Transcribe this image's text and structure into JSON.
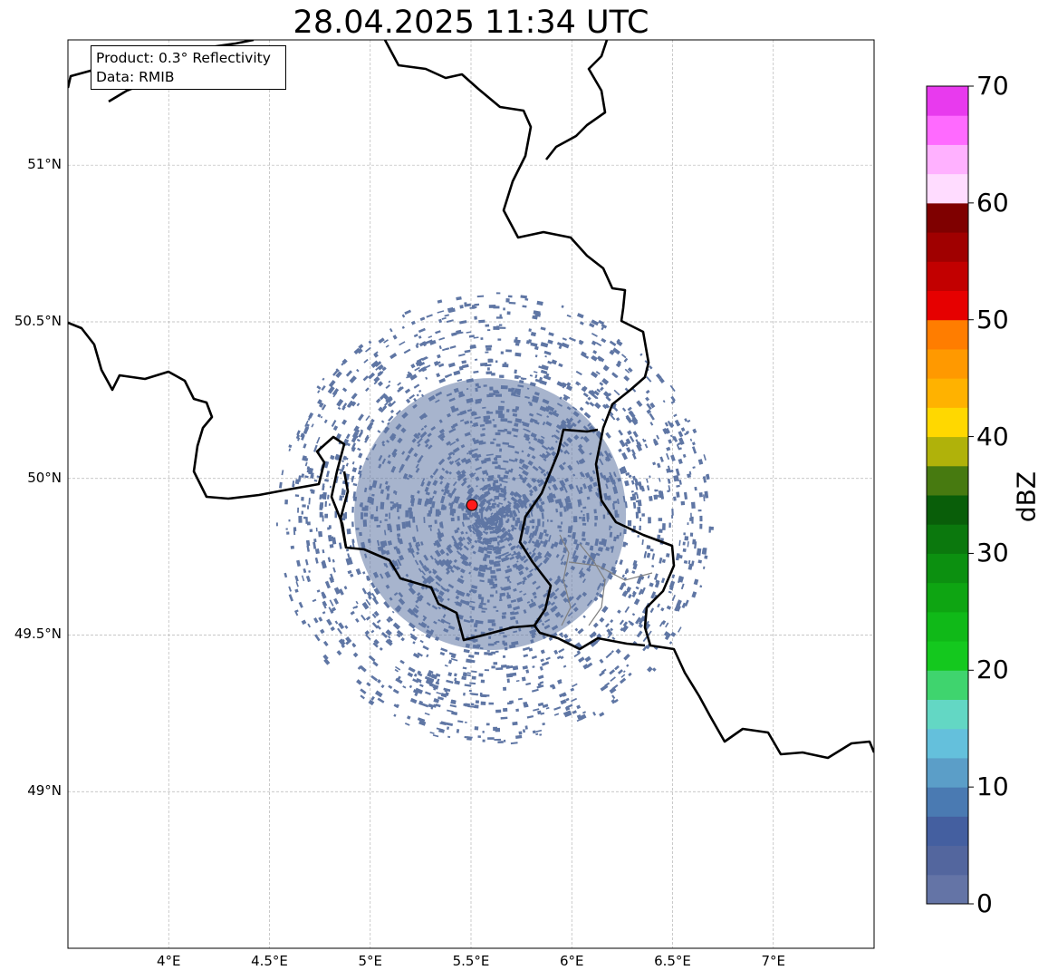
{
  "title": "28.04.2025 11:34 UTC",
  "info_box": {
    "product": "Product: 0.3° Reflectivity",
    "source": "Data: RMIB"
  },
  "map": {
    "projection": "PlateCarree",
    "lon_range": [
      3.5,
      7.5
    ],
    "lat_range": [
      48.5,
      51.4
    ],
    "gridlines": true,
    "lat_ticks": [
      {
        "value": 49.0,
        "label": "49°N"
      },
      {
        "value": 49.5,
        "label": "49.5°N"
      },
      {
        "value": 50.0,
        "label": "50°N"
      },
      {
        "value": 50.5,
        "label": "50.5°N"
      },
      {
        "value": 51.0,
        "label": "51°N"
      }
    ],
    "lon_ticks": [
      {
        "value": 4.0,
        "label": "4°E"
      },
      {
        "value": 4.5,
        "label": "4.5°E"
      },
      {
        "value": 5.0,
        "label": "5°E"
      },
      {
        "value": 5.5,
        "label": "5.5°E"
      },
      {
        "value": 6.0,
        "label": "6°E"
      },
      {
        "value": 6.5,
        "label": "6.5°E"
      },
      {
        "value": 7.0,
        "label": "7°E"
      }
    ],
    "radar_site": {
      "lon": 5.505,
      "lat": 49.915,
      "marker_color": "#ff1a1a"
    },
    "echo_color": "#5f76a4",
    "border_color": "#000000",
    "admin_border_color": "#808080"
  },
  "colorbar": {
    "label": "dBZ",
    "min": 0,
    "max": 70,
    "step": 2.5,
    "tick_labels": [
      "0",
      "10",
      "20",
      "30",
      "40",
      "50",
      "60",
      "70"
    ],
    "colors": [
      "#6474a6",
      "#53669e",
      "#445fa0",
      "#4a7ab2",
      "#5b9ec8",
      "#64c0dc",
      "#63d7c4",
      "#3fd46e",
      "#14c81e",
      "#10b918",
      "#0ea512",
      "#0c9010",
      "#0b780d",
      "#095e09",
      "#477a10",
      "#b0b20a",
      "#ffd800",
      "#ffb200",
      "#ff9900",
      "#ff7d00",
      "#e60000",
      "#c20000",
      "#a00000",
      "#7f0000",
      "#ffdcff",
      "#ffb1ff",
      "#ff6aff",
      "#e83aee"
    ]
  }
}
